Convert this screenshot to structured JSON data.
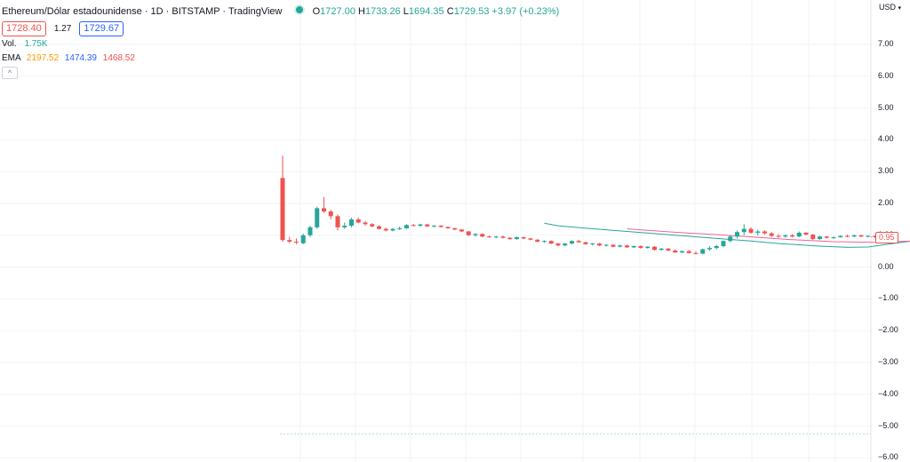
{
  "header": {
    "symbol": "Ethereum/Dólar estadounidense · 1D · BITSTAMP · TradingView",
    "o_label": "O",
    "o_value": "1727.00",
    "h_label": "H",
    "h_value": "1733.26",
    "l_label": "L",
    "l_value": "1694.35",
    "c_label": "C",
    "c_value": "1729.53",
    "change": "+3.97 (+0.23%)",
    "bid": "1728.40",
    "spread": "1.27",
    "ask": "1729.67",
    "vol_label": "Vol.",
    "vol_value": "1.75K",
    "ema_label": "EMA",
    "ema1": "2197.52",
    "ema2": "1474.39",
    "ema3": "1468.52",
    "collapse_icon": "chevron-up-icon"
  },
  "price_scale": {
    "currency": "USD",
    "currency_icon": "chevron-down-icon",
    "ticks": [
      "7.00",
      "6.00",
      "5.00",
      "4.00",
      "3.00",
      "2.00",
      "1.00",
      "0.00",
      "−1.00",
      "−2.00",
      "−3.00",
      "−4.00",
      "−5.00",
      "−6.00"
    ],
    "last_price_label": "0.95"
  },
  "colors": {
    "up": "#26a69a",
    "down": "#ef5350",
    "ema_slow": "#f06292",
    "ema_fast": "#26a69a",
    "grid": "#f0f3fa"
  },
  "chart_data": {
    "type": "candlestick",
    "ylim": [
      -6.2,
      7.7
    ],
    "last_price": 0.95,
    "ohlc": [
      [
        2.8,
        3.5,
        0.8,
        0.85
      ],
      [
        0.85,
        0.95,
        0.75,
        0.8
      ],
      [
        0.8,
        0.9,
        0.72,
        0.78
      ],
      [
        0.75,
        1.05,
        0.72,
        1.0
      ],
      [
        1.0,
        1.3,
        0.95,
        1.25
      ],
      [
        1.25,
        1.9,
        1.2,
        1.85
      ],
      [
        1.85,
        2.2,
        1.7,
        1.75
      ],
      [
        1.75,
        1.8,
        1.5,
        1.6
      ],
      [
        1.6,
        1.65,
        1.15,
        1.25
      ],
      [
        1.25,
        1.4,
        1.2,
        1.3
      ],
      [
        1.3,
        1.55,
        1.25,
        1.5
      ],
      [
        1.5,
        1.55,
        1.38,
        1.4
      ],
      [
        1.4,
        1.45,
        1.3,
        1.35
      ],
      [
        1.35,
        1.38,
        1.25,
        1.28
      ],
      [
        1.28,
        1.32,
        1.18,
        1.2
      ],
      [
        1.2,
        1.24,
        1.12,
        1.15
      ],
      [
        1.15,
        1.22,
        1.12,
        1.2
      ],
      [
        1.2,
        1.28,
        1.16,
        1.22
      ],
      [
        1.22,
        1.35,
        1.2,
        1.32
      ],
      [
        1.32,
        1.36,
        1.28,
        1.3
      ],
      [
        1.3,
        1.36,
        1.26,
        1.34
      ],
      [
        1.34,
        1.36,
        1.26,
        1.28
      ],
      [
        1.28,
        1.32,
        1.25,
        1.3
      ],
      [
        1.3,
        1.32,
        1.24,
        1.26
      ],
      [
        1.26,
        1.28,
        1.2,
        1.22
      ],
      [
        1.22,
        1.24,
        1.16,
        1.18
      ],
      [
        1.18,
        1.2,
        1.1,
        1.12
      ],
      [
        1.12,
        1.14,
        0.98,
        1.0
      ],
      [
        1.0,
        1.06,
        0.96,
        1.04
      ],
      [
        1.04,
        1.06,
        0.94,
        0.96
      ],
      [
        0.96,
        0.99,
        0.92,
        0.94
      ],
      [
        0.94,
        0.98,
        0.9,
        0.96
      ],
      [
        0.96,
        0.99,
        0.9,
        0.92
      ],
      [
        0.92,
        0.95,
        0.86,
        0.88
      ],
      [
        0.88,
        0.96,
        0.86,
        0.94
      ],
      [
        0.94,
        0.96,
        0.88,
        0.9
      ],
      [
        0.9,
        0.92,
        0.84,
        0.86
      ],
      [
        0.86,
        0.88,
        0.78,
        0.8
      ],
      [
        0.8,
        0.84,
        0.76,
        0.82
      ],
      [
        0.82,
        0.84,
        0.72,
        0.74
      ],
      [
        0.74,
        0.76,
        0.66,
        0.68
      ],
      [
        0.68,
        0.76,
        0.66,
        0.74
      ],
      [
        0.74,
        0.84,
        0.72,
        0.82
      ],
      [
        0.82,
        0.86,
        0.76,
        0.78
      ],
      [
        0.78,
        0.8,
        0.7,
        0.72
      ],
      [
        0.72,
        0.76,
        0.68,
        0.74
      ],
      [
        0.74,
        0.76,
        0.66,
        0.68
      ],
      [
        0.68,
        0.72,
        0.64,
        0.7
      ],
      [
        0.7,
        0.72,
        0.62,
        0.64
      ],
      [
        0.64,
        0.7,
        0.62,
        0.68
      ],
      [
        0.68,
        0.7,
        0.6,
        0.62
      ],
      [
        0.62,
        0.68,
        0.6,
        0.66
      ],
      [
        0.66,
        0.68,
        0.58,
        0.6
      ],
      [
        0.6,
        0.66,
        0.58,
        0.64
      ],
      [
        0.64,
        0.66,
        0.52,
        0.54
      ],
      [
        0.54,
        0.6,
        0.52,
        0.58
      ],
      [
        0.58,
        0.6,
        0.5,
        0.52
      ],
      [
        0.52,
        0.56,
        0.44,
        0.46
      ],
      [
        0.46,
        0.52,
        0.44,
        0.5
      ],
      [
        0.5,
        0.54,
        0.42,
        0.44
      ],
      [
        0.44,
        0.5,
        0.4,
        0.42
      ],
      [
        0.42,
        0.58,
        0.4,
        0.56
      ],
      [
        0.56,
        0.66,
        0.52,
        0.6
      ],
      [
        0.6,
        0.7,
        0.56,
        0.66
      ],
      [
        0.66,
        0.84,
        0.62,
        0.82
      ],
      [
        0.82,
        1.0,
        0.78,
        0.96
      ],
      [
        0.96,
        1.15,
        0.9,
        1.1
      ],
      [
        1.1,
        1.35,
        1.0,
        1.2
      ],
      [
        1.2,
        1.25,
        1.05,
        1.08
      ],
      [
        1.08,
        1.18,
        1.0,
        1.12
      ],
      [
        1.12,
        1.16,
        1.02,
        1.06
      ],
      [
        1.06,
        1.1,
        0.95,
        0.98
      ],
      [
        0.98,
        1.04,
        0.92,
        0.96
      ],
      [
        0.96,
        1.02,
        0.92,
        1.0
      ],
      [
        1.0,
        1.04,
        0.94,
        0.96
      ],
      [
        0.96,
        1.12,
        0.94,
        1.08
      ],
      [
        1.08,
        1.1,
        1.0,
        1.02
      ],
      [
        1.02,
        1.04,
        0.86,
        0.88
      ],
      [
        0.88,
        0.98,
        0.86,
        0.96
      ],
      [
        0.96,
        0.98,
        0.9,
        0.92
      ],
      [
        0.92,
        0.96,
        0.88,
        0.94
      ],
      [
        0.94,
        1.0,
        0.92,
        0.98
      ],
      [
        0.98,
        1.02,
        0.94,
        0.96
      ],
      [
        0.96,
        1.02,
        0.94,
        1.0
      ],
      [
        1.0,
        1.02,
        0.94,
        0.96
      ],
      [
        0.96,
        1.0,
        0.93,
        0.98
      ],
      [
        0.98,
        1.0,
        0.92,
        0.95
      ]
    ],
    "ema_fast": [
      [
        38,
        1.38
      ],
      [
        40,
        1.3
      ],
      [
        44,
        1.22
      ],
      [
        50,
        1.12
      ],
      [
        56,
        1.02
      ],
      [
        62,
        0.92
      ],
      [
        68,
        0.82
      ],
      [
        72,
        0.74
      ],
      [
        78,
        0.66
      ],
      [
        82,
        0.62
      ],
      [
        85,
        0.63
      ],
      [
        88,
        0.72
      ],
      [
        92,
        0.84
      ],
      [
        96,
        0.9
      ],
      [
        100,
        0.92
      ],
      [
        105,
        0.95
      ],
      [
        108,
        0.96
      ]
    ],
    "ema_slow": [
      [
        50,
        1.2
      ],
      [
        58,
        1.08
      ],
      [
        66,
        0.98
      ],
      [
        74,
        0.86
      ],
      [
        80,
        0.8
      ],
      [
        86,
        0.78
      ],
      [
        92,
        0.82
      ],
      [
        100,
        0.88
      ],
      [
        108,
        0.92
      ]
    ],
    "volume_baseline": -5.25
  }
}
